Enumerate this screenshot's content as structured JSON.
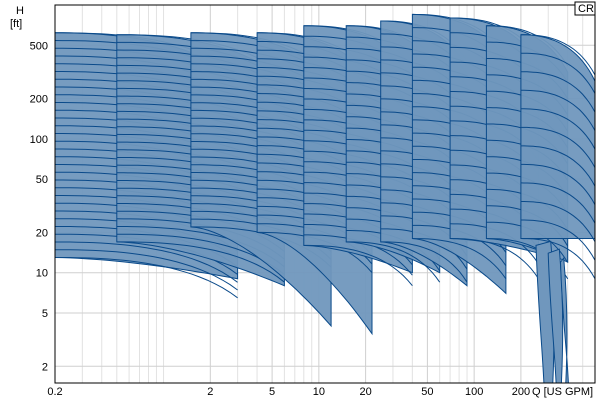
{
  "chart_data": {
    "type": "area",
    "title": "",
    "series_label": "CR",
    "xlabel": "Q [US GPM]",
    "ylabel_line1": "H",
    "ylabel_line2": "[ft]",
    "x_scale": "log",
    "y_scale": "log",
    "xlim": [
      0.2,
      600
    ],
    "ylim": [
      1.5,
      1000
    ],
    "x_ticks": [
      0.2,
      2,
      5,
      10,
      20,
      50,
      100,
      200
    ],
    "x_tick_labels": [
      "0.2",
      "2",
      "5",
      "10",
      "20",
      "50",
      "100",
      "200"
    ],
    "x_minor_ticks": [
      0.3,
      0.4,
      0.5,
      0.6,
      0.7,
      0.8,
      0.9,
      1,
      3,
      4,
      6,
      7,
      8,
      9,
      30,
      40,
      60,
      70,
      80,
      90,
      300,
      400,
      500
    ],
    "y_ticks": [
      2,
      5,
      10,
      20,
      50,
      100,
      200,
      500
    ],
    "y_tick_labels": [
      "2",
      "5",
      "10",
      "20",
      "50",
      "100",
      "200",
      "500"
    ],
    "grid": true,
    "fill_color": "#7097bd",
    "line_color": "#0a4a8a",
    "pump_families": [
      {
        "q_min": 0.2,
        "q_max": 3.0,
        "h_top": 620,
        "h_bottom": 13,
        "h_low_at_max": 9,
        "curves": 30
      },
      {
        "q_min": 0.5,
        "q_max": 6.0,
        "h_top": 600,
        "h_bottom": 17,
        "h_low_at_max": 8,
        "curves": 28
      },
      {
        "q_min": 1.5,
        "q_max": 12.0,
        "h_top": 620,
        "h_bottom": 22,
        "h_low_at_max": 4,
        "curves": 26
      },
      {
        "q_min": 4.0,
        "q_max": 22.0,
        "h_top": 620,
        "h_bottom": 20,
        "h_low_at_max": 3.5,
        "curves": 24
      },
      {
        "q_min": 8.0,
        "q_max": 40.0,
        "h_top": 700,
        "h_bottom": 16,
        "h_low_at_max": 10,
        "curves": 22
      },
      {
        "q_min": 15.0,
        "q_max": 60.0,
        "h_top": 700,
        "h_bottom": 17,
        "h_low_at_max": 10,
        "curves": 20
      },
      {
        "q_min": 25.0,
        "q_max": 90.0,
        "h_top": 760,
        "h_bottom": 17,
        "h_low_at_max": 8,
        "curves": 18
      },
      {
        "q_min": 40.0,
        "q_max": 160.0,
        "h_top": 850,
        "h_bottom": 18,
        "h_low_at_max": 7,
        "curves": 18
      },
      {
        "q_min": 70.0,
        "q_max": 260.0,
        "h_top": 800,
        "h_bottom": 18,
        "h_low_at_max": 14,
        "curves": 16
      },
      {
        "q_min": 120.0,
        "q_max": 400.0,
        "h_top": 700,
        "h_bottom": 18,
        "h_low_at_max": 12,
        "curves": 14
      },
      {
        "q_min": 200.0,
        "q_max": 600.0,
        "h_top": 600,
        "h_bottom": 18,
        "h_low_at_max": 18,
        "curves": 12
      }
    ],
    "steep_tails": [
      {
        "q_left": 250,
        "q_right": 330,
        "h_start": 16,
        "h_end": 1.5
      },
      {
        "q_left": 300,
        "q_right": 375,
        "h_start": 14,
        "h_end": 1.5
      },
      {
        "q_left": 360,
        "q_right": 400,
        "h_start": 12,
        "h_end": 1.5
      }
    ]
  }
}
